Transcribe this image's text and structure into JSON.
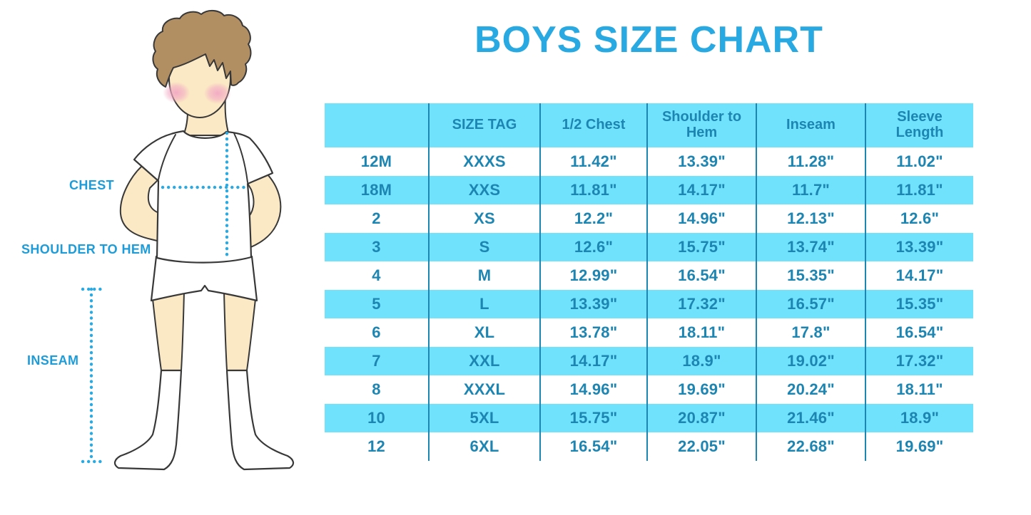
{
  "title": "BOYS SIZE CHART",
  "figure": {
    "chest_label": "CHEST",
    "shoulder_label": "SHOULDER TO HEM",
    "inseam_label": "INSEAM"
  },
  "chart_data": {
    "type": "table",
    "title": "BOYS SIZE CHART",
    "columns": [
      "",
      "SIZE TAG",
      "1/2 Chest",
      "Shoulder to Hem",
      "Inseam",
      "Sleeve Length"
    ],
    "rows": [
      [
        "12M",
        "XXXS",
        "11.42\"",
        "13.39\"",
        "11.28\"",
        "11.02\""
      ],
      [
        "18M",
        "XXS",
        "11.81\"",
        "14.17\"",
        "11.7\"",
        "11.81\""
      ],
      [
        "2",
        "XS",
        "12.2\"",
        "14.96\"",
        "12.13\"",
        "12.6\""
      ],
      [
        "3",
        "S",
        "12.6\"",
        "15.75\"",
        "13.74\"",
        "13.39\""
      ],
      [
        "4",
        "M",
        "12.99\"",
        "16.54\"",
        "15.35\"",
        "14.17\""
      ],
      [
        "5",
        "L",
        "13.39\"",
        "17.32\"",
        "16.57\"",
        "15.35\""
      ],
      [
        "6",
        "XL",
        "13.78\"",
        "18.11\"",
        "17.8\"",
        "16.54\""
      ],
      [
        "7",
        "XXL",
        "14.17\"",
        "18.9\"",
        "19.02\"",
        "17.32\""
      ],
      [
        "8",
        "XXXL",
        "14.96\"",
        "19.69\"",
        "20.24\"",
        "18.11\""
      ],
      [
        "10",
        "5XL",
        "15.75\"",
        "20.87\"",
        "21.46\"",
        "18.9\""
      ],
      [
        "12",
        "6XL",
        "16.54\"",
        "22.05\"",
        "22.68\"",
        "19.69\""
      ]
    ],
    "row_stripe_pattern": "white/cyan alternating, header cyan",
    "grid": "vertical column separators only"
  },
  "colors": {
    "title_blue": "#29A9E1",
    "label_blue": "#1E9CD9",
    "table_text": "#1D85B2",
    "table_line": "#1D85B2",
    "row_cyan": "#71E2FB",
    "dotted_line_blue": "#2BAAE2",
    "skin": "#FBE8C4",
    "hair_brown": "#B28F63",
    "cheek_pink": "#F2A9C4",
    "outline": "#383838"
  }
}
